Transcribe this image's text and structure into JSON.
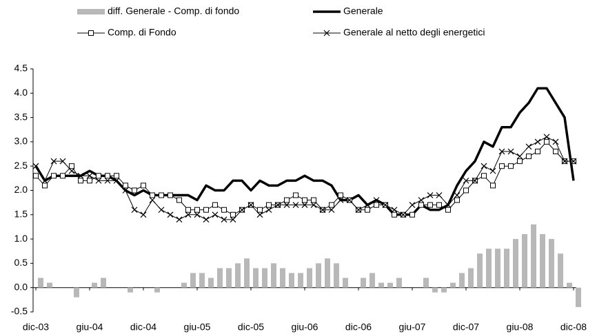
{
  "chart_data": {
    "type": "combo",
    "categories": [
      "dic-03",
      null,
      null,
      null,
      null,
      null,
      "giu-04",
      null,
      null,
      null,
      null,
      null,
      "dic-04",
      null,
      null,
      null,
      null,
      null,
      "giu-05",
      null,
      null,
      null,
      null,
      null,
      "dic-05",
      null,
      null,
      null,
      null,
      null,
      "giu-06",
      null,
      null,
      null,
      null,
      null,
      "dic-06",
      null,
      null,
      null,
      null,
      null,
      "giu-07",
      null,
      null,
      null,
      null,
      null,
      "dic-07",
      null,
      null,
      null,
      null,
      null,
      "giu-08",
      null,
      null,
      null,
      null,
      null,
      "dic-08"
    ],
    "series": [
      {
        "name": "diff. Generale - Comp. di fondo",
        "kind": "bar",
        "color": "#b8b8b8",
        "values": [
          0.2,
          0.1,
          0,
          0,
          -0.2,
          0,
          0.1,
          0.2,
          0,
          0,
          -0.1,
          0,
          0,
          -0.1,
          0,
          0,
          0.1,
          0.3,
          0.3,
          0.2,
          0.4,
          0.4,
          0.5,
          0.6,
          0.4,
          0.4,
          0.5,
          0.4,
          0.3,
          0.3,
          0.4,
          0.5,
          0.6,
          0.5,
          0.2,
          0,
          0.2,
          0.3,
          0.1,
          0.1,
          0.2,
          0,
          0,
          0.2,
          -0.1,
          -0.1,
          0.1,
          0.3,
          0.4,
          0.7,
          0.8,
          0.8,
          0.8,
          1.0,
          1.1,
          1.3,
          1.1,
          1.0,
          0.7,
          0.1,
          -0.4
        ]
      },
      {
        "name": "Generale",
        "kind": "line",
        "marker": "none",
        "width": 3.5,
        "color": "#000000",
        "values": [
          2.5,
          2.2,
          2.3,
          2.3,
          2.3,
          2.3,
          2.4,
          2.3,
          2.3,
          2.2,
          2.0,
          1.9,
          2.0,
          1.9,
          1.9,
          1.9,
          1.9,
          1.9,
          1.8,
          2.1,
          2.0,
          2.0,
          2.2,
          2.2,
          2.0,
          2.2,
          2.1,
          2.1,
          2.2,
          2.2,
          2.3,
          2.2,
          2.2,
          2.1,
          1.8,
          1.8,
          1.9,
          1.7,
          1.8,
          1.7,
          1.5,
          1.5,
          1.5,
          1.7,
          1.6,
          1.6,
          1.7,
          2.1,
          2.4,
          2.6,
          3.0,
          2.9,
          3.3,
          3.3,
          3.6,
          3.8,
          4.1,
          4.1,
          3.8,
          3.5,
          2.2
        ]
      },
      {
        "name": "Comp. di Fondo",
        "kind": "line",
        "marker": "square",
        "width": 1,
        "color": "#000000",
        "values": [
          2.3,
          2.1,
          2.3,
          2.3,
          2.5,
          2.2,
          2.2,
          2.3,
          2.3,
          2.3,
          2.1,
          2.0,
          2.1,
          1.9,
          1.9,
          1.9,
          1.8,
          1.6,
          1.6,
          1.6,
          1.7,
          1.6,
          1.5,
          1.6,
          1.7,
          1.6,
          1.7,
          1.7,
          1.8,
          1.9,
          1.8,
          1.8,
          1.6,
          1.7,
          1.9,
          1.8,
          1.6,
          1.6,
          1.7,
          1.7,
          1.5,
          1.5,
          1.5,
          1.7,
          1.7,
          1.7,
          1.6,
          1.8,
          2.0,
          2.2,
          2.3,
          2.1,
          2.5,
          2.5,
          2.6,
          2.7,
          2.8,
          3.0,
          2.8,
          2.6,
          2.6
        ]
      },
      {
        "name": "Generale al netto degli energetici",
        "kind": "line",
        "marker": "cross",
        "width": 1,
        "color": "#000000",
        "values": [
          2.5,
          2.2,
          2.6,
          2.6,
          2.4,
          2.3,
          2.3,
          2.2,
          2.2,
          2.2,
          2.0,
          1.6,
          1.5,
          1.8,
          1.6,
          1.5,
          1.4,
          1.5,
          1.5,
          1.4,
          1.5,
          1.4,
          1.4,
          1.6,
          1.7,
          1.5,
          1.6,
          1.7,
          1.7,
          1.7,
          1.7,
          1.7,
          1.6,
          1.6,
          1.8,
          1.8,
          1.6,
          1.7,
          1.8,
          1.7,
          1.6,
          1.5,
          1.7,
          1.8,
          1.9,
          1.9,
          1.7,
          1.9,
          2.2,
          2.2,
          2.5,
          2.4,
          2.8,
          2.8,
          2.7,
          2.9,
          3.0,
          3.1,
          3.0,
          2.6,
          2.6
        ]
      }
    ],
    "ylim": [
      -0.5,
      4.5
    ],
    "yticks": [
      -0.5,
      {
        "value": 0,
        "label": "0.0"
      },
      0.5,
      {
        "value": 1,
        "label": "1.0"
      },
      1.5,
      {
        "value": 2,
        "label": "2.0"
      },
      2.5,
      {
        "value": 3,
        "label": "3.0"
      },
      3.5,
      {
        "value": 4,
        "label": "4.0"
      },
      4.5
    ],
    "grid": false
  }
}
